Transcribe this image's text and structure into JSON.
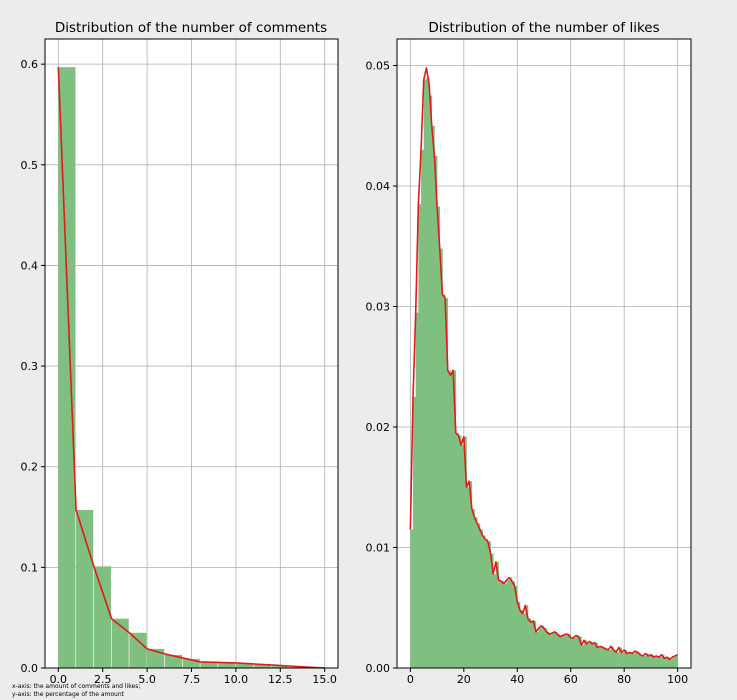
{
  "chart_data": [
    {
      "type": "bar",
      "title": "Distribution of the number of comments",
      "xlabel": "",
      "ylabel": "",
      "xlim": [
        -0.75,
        15.75
      ],
      "ylim": [
        0,
        0.625
      ],
      "grid": true,
      "xticks": [
        0.0,
        2.5,
        5.0,
        7.5,
        10.0,
        12.5,
        15.0
      ],
      "xtick_labels": [
        "0.0",
        "2.5",
        "5.0",
        "7.5",
        "10.0",
        "12.5",
        "15.0"
      ],
      "yticks": [
        0.0,
        0.1,
        0.2,
        0.3,
        0.4,
        0.5,
        0.6
      ],
      "ytick_labels": [
        "0.0",
        "0.1",
        "0.2",
        "0.3",
        "0.4",
        "0.5",
        "0.6"
      ],
      "bin_edges": [
        0,
        1,
        2,
        3,
        4,
        5,
        6,
        7,
        8,
        9,
        10,
        11,
        12,
        13,
        14,
        15
      ],
      "values": [
        0.597,
        0.157,
        0.101,
        0.049,
        0.035,
        0.019,
        0.013,
        0.009,
        0.006,
        0.005,
        0.004,
        0.003,
        0.002,
        0.001,
        0.001
      ],
      "line": {
        "x": [
          0,
          1,
          2,
          3,
          4,
          5,
          6,
          7,
          8,
          10,
          11,
          12,
          13,
          14,
          15
        ],
        "y": [
          0.597,
          0.157,
          0.101,
          0.049,
          0.035,
          0.019,
          0.014,
          0.01,
          0.006,
          0.005,
          0.004,
          0.003,
          0.002,
          0.001,
          0.0
        ]
      },
      "bar_color": "#7fbf7f",
      "line_color": "#e31a1c"
    },
    {
      "type": "bar",
      "title": "Distribution of the number of likes",
      "xlabel": "",
      "ylabel": "",
      "xlim": [
        -5,
        105
      ],
      "ylim": [
        0,
        0.0522
      ],
      "grid": true,
      "xticks": [
        0,
        20,
        40,
        60,
        80,
        100
      ],
      "xtick_labels": [
        "0",
        "20",
        "40",
        "60",
        "80",
        "100"
      ],
      "yticks": [
        0.0,
        0.01,
        0.02,
        0.03,
        0.04,
        0.05
      ],
      "ytick_labels": [
        "0.00",
        "0.01",
        "0.02",
        "0.03",
        "0.04",
        "0.05"
      ],
      "bin_start": 0,
      "bin_width": 1,
      "values": [
        0.0115,
        0.0225,
        0.0295,
        0.0385,
        0.043,
        0.0488,
        0.049,
        0.0475,
        0.045,
        0.0425,
        0.0383,
        0.0348,
        0.031,
        0.0307,
        0.0247,
        0.0245,
        0.0247,
        0.0195,
        0.0193,
        0.0185,
        0.0192,
        0.015,
        0.0155,
        0.0132,
        0.0125,
        0.012,
        0.0115,
        0.011,
        0.0107,
        0.0105,
        0.0095,
        0.0078,
        0.0088,
        0.0073,
        0.0072,
        0.007,
        0.0073,
        0.0075,
        0.0072,
        0.0068,
        0.0055,
        0.0048,
        0.0045,
        0.0052,
        0.0041,
        0.0038,
        0.0039,
        0.003,
        0.0033,
        0.0035,
        0.0033,
        0.003,
        0.0028,
        0.0029,
        0.003,
        0.0028,
        0.0026,
        0.0027,
        0.0028,
        0.0028,
        0.0025,
        0.0025,
        0.0027,
        0.0026,
        0.0019,
        0.0023,
        0.002,
        0.0022,
        0.002,
        0.0021,
        0.0017,
        0.0018,
        0.0017,
        0.0016,
        0.0015,
        0.0018,
        0.0015,
        0.0013,
        0.0017,
        0.0013,
        0.0015,
        0.0012,
        0.0013,
        0.0012,
        0.0014,
        0.0013,
        0.0011,
        0.001,
        0.0012,
        0.001,
        0.0011,
        0.0009,
        0.001,
        0.0009,
        0.0011,
        0.0008,
        0.0009,
        0.0007,
        0.0009,
        0.001
      ],
      "line": {
        "x": [
          0,
          1,
          2,
          3,
          4,
          5,
          6,
          7,
          8,
          9,
          10,
          11,
          12,
          13,
          14,
          15,
          16,
          17,
          18,
          19,
          20,
          21,
          22,
          23,
          24,
          25,
          26,
          27,
          28,
          29,
          30,
          31,
          32,
          33,
          34,
          35,
          36,
          37,
          38,
          39,
          40,
          41,
          42,
          43,
          44,
          45,
          46,
          47,
          48,
          49,
          50,
          51,
          52,
          53,
          54,
          55,
          56,
          57,
          58,
          59,
          60,
          61,
          62,
          63,
          64,
          65,
          66,
          67,
          68,
          69,
          70,
          71,
          72,
          73,
          74,
          75,
          76,
          77,
          78,
          79,
          80,
          81,
          82,
          83,
          84,
          85,
          86,
          87,
          88,
          89,
          90,
          91,
          92,
          93,
          94,
          95,
          96,
          97,
          98,
          99,
          100
        ],
        "y": [
          0.0115,
          0.0225,
          0.0295,
          0.0385,
          0.043,
          0.0488,
          0.0498,
          0.0485,
          0.045,
          0.0425,
          0.0383,
          0.0348,
          0.031,
          0.0307,
          0.0247,
          0.0243,
          0.0247,
          0.0195,
          0.0193,
          0.0185,
          0.0192,
          0.015,
          0.0155,
          0.0132,
          0.0125,
          0.012,
          0.0115,
          0.011,
          0.0107,
          0.0105,
          0.0095,
          0.0078,
          0.0088,
          0.0073,
          0.0072,
          0.007,
          0.0073,
          0.0075,
          0.0072,
          0.0068,
          0.0055,
          0.0048,
          0.0045,
          0.0052,
          0.0041,
          0.0038,
          0.0039,
          0.003,
          0.0033,
          0.0035,
          0.0033,
          0.003,
          0.0028,
          0.0029,
          0.003,
          0.0028,
          0.0026,
          0.0027,
          0.0028,
          0.0028,
          0.0025,
          0.0025,
          0.0027,
          0.0026,
          0.0019,
          0.0023,
          0.002,
          0.0022,
          0.002,
          0.0021,
          0.0017,
          0.0018,
          0.0017,
          0.0016,
          0.0015,
          0.0018,
          0.0015,
          0.0013,
          0.0017,
          0.0013,
          0.0015,
          0.0012,
          0.0013,
          0.0012,
          0.0014,
          0.0013,
          0.0011,
          0.001,
          0.0012,
          0.001,
          0.0011,
          0.0009,
          0.001,
          0.0009,
          0.0011,
          0.0008,
          0.0009,
          0.0007,
          0.0009,
          0.001,
          0.0011
        ]
      },
      "bar_color": "#7fbf7f",
      "line_color": "#e31a1c"
    }
  ],
  "caption": {
    "line1": "x-axis: the amount of comments and likes;",
    "line2": "y-axis: the percentage of the amount"
  }
}
